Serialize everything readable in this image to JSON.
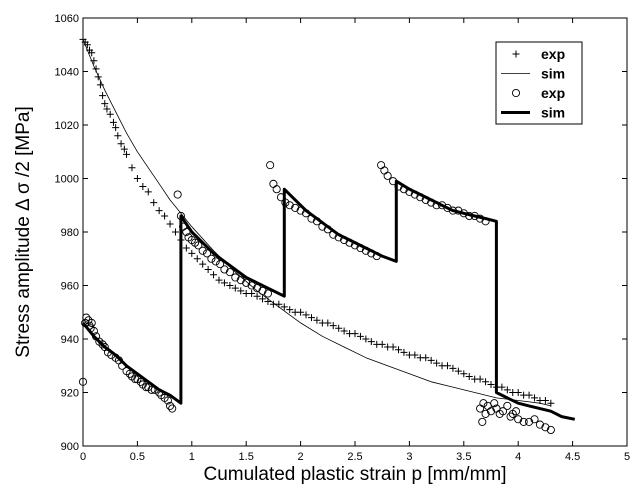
{
  "chart_data": {
    "type": "scatter",
    "title": "",
    "xlabel": "Cumulated plastic strain p [mm/mm]",
    "ylabel": "Stress amplitude Δ σ /2 [MPa]",
    "xlim": [
      0,
      5
    ],
    "ylim": [
      900,
      1060
    ],
    "x_ticks": [
      "0",
      "0.5",
      "1",
      "1.5",
      "2",
      "2.5",
      "3",
      "3.5",
      "4",
      "4.5",
      "5"
    ],
    "y_ticks": [
      "900",
      "920",
      "940",
      "960",
      "980",
      "1000",
      "1020",
      "1040",
      "1060"
    ],
    "grid": false,
    "legend_position": "top-right",
    "series": [
      {
        "name": "exp",
        "style": "plus-markers",
        "color": "#000000",
        "points": [
          [
            0.0,
            1052
          ],
          [
            0.02,
            1051
          ],
          [
            0.04,
            1050
          ],
          [
            0.06,
            1048
          ],
          [
            0.08,
            1047
          ],
          [
            0.1,
            1044
          ],
          [
            0.12,
            1041
          ],
          [
            0.14,
            1038
          ],
          [
            0.16,
            1035
          ],
          [
            0.18,
            1031
          ],
          [
            0.2,
            1028
          ],
          [
            0.22,
            1026
          ],
          [
            0.25,
            1024
          ],
          [
            0.28,
            1021
          ],
          [
            0.3,
            1019
          ],
          [
            0.32,
            1016
          ],
          [
            0.35,
            1013
          ],
          [
            0.38,
            1011
          ],
          [
            0.4,
            1009
          ],
          [
            0.45,
            1004
          ],
          [
            0.5,
            1000
          ],
          [
            0.55,
            997
          ],
          [
            0.6,
            995
          ],
          [
            0.65,
            991
          ],
          [
            0.7,
            988
          ],
          [
            0.75,
            986
          ],
          [
            0.8,
            983
          ],
          [
            0.85,
            980
          ],
          [
            0.9,
            977
          ],
          [
            0.95,
            974
          ],
          [
            1.0,
            972
          ],
          [
            1.05,
            970
          ],
          [
            1.1,
            968
          ],
          [
            1.15,
            966
          ],
          [
            1.2,
            964
          ],
          [
            1.25,
            962
          ],
          [
            1.3,
            961
          ],
          [
            1.35,
            960
          ],
          [
            1.4,
            959
          ],
          [
            1.45,
            958
          ],
          [
            1.5,
            957
          ],
          [
            1.55,
            957
          ],
          [
            1.6,
            956
          ],
          [
            1.65,
            955
          ],
          [
            1.7,
            954
          ],
          [
            1.75,
            953
          ],
          [
            1.8,
            953
          ],
          [
            1.85,
            952
          ],
          [
            1.9,
            951
          ],
          [
            1.95,
            950
          ],
          [
            2.0,
            950
          ],
          [
            2.05,
            949
          ],
          [
            2.1,
            948
          ],
          [
            2.15,
            947
          ],
          [
            2.2,
            946
          ],
          [
            2.25,
            946
          ],
          [
            2.3,
            945
          ],
          [
            2.35,
            944
          ],
          [
            2.4,
            943
          ],
          [
            2.45,
            942
          ],
          [
            2.5,
            942
          ],
          [
            2.55,
            941
          ],
          [
            2.6,
            940
          ],
          [
            2.65,
            939
          ],
          [
            2.7,
            938
          ],
          [
            2.75,
            938
          ],
          [
            2.8,
            937
          ],
          [
            2.85,
            937
          ],
          [
            2.9,
            936
          ],
          [
            2.95,
            935
          ],
          [
            3.0,
            934
          ],
          [
            3.05,
            934
          ],
          [
            3.1,
            933
          ],
          [
            3.15,
            933
          ],
          [
            3.2,
            932
          ],
          [
            3.25,
            931
          ],
          [
            3.3,
            930
          ],
          [
            3.35,
            930
          ],
          [
            3.4,
            929
          ],
          [
            3.45,
            928
          ],
          [
            3.5,
            927
          ],
          [
            3.55,
            926
          ],
          [
            3.6,
            925
          ],
          [
            3.65,
            925
          ],
          [
            3.7,
            924
          ],
          [
            3.75,
            923
          ],
          [
            3.8,
            922
          ],
          [
            3.85,
            922
          ],
          [
            3.9,
            921
          ],
          [
            3.95,
            920
          ],
          [
            4.0,
            920
          ],
          [
            4.05,
            919
          ],
          [
            4.1,
            919
          ],
          [
            4.15,
            918
          ],
          [
            4.2,
            917
          ],
          [
            4.25,
            917
          ],
          [
            4.3,
            916
          ]
        ]
      },
      {
        "name": "sim",
        "style": "thin-line",
        "color": "#000000",
        "points": [
          [
            0.0,
            1052
          ],
          [
            0.1,
            1042
          ],
          [
            0.2,
            1033
          ],
          [
            0.3,
            1025
          ],
          [
            0.4,
            1017
          ],
          [
            0.5,
            1010
          ],
          [
            0.6,
            1004
          ],
          [
            0.7,
            998
          ],
          [
            0.8,
            992
          ],
          [
            0.9,
            987
          ],
          [
            1.0,
            982
          ],
          [
            1.2,
            973
          ],
          [
            1.4,
            965
          ],
          [
            1.6,
            958
          ],
          [
            1.8,
            952
          ],
          [
            2.0,
            946
          ],
          [
            2.2,
            941
          ],
          [
            2.4,
            937
          ],
          [
            2.6,
            933
          ],
          [
            2.8,
            930
          ],
          [
            3.0,
            927
          ],
          [
            3.2,
            924
          ],
          [
            3.4,
            922
          ],
          [
            3.6,
            920
          ],
          [
            3.8,
            918
          ],
          [
            4.0,
            917
          ],
          [
            4.2,
            916
          ],
          [
            4.3,
            915
          ]
        ]
      },
      {
        "name": "exp",
        "style": "circle-markers",
        "color": "#000000",
        "points": [
          [
            0.0,
            924
          ],
          [
            0.02,
            946
          ],
          [
            0.03,
            948
          ],
          [
            0.05,
            947
          ],
          [
            0.06,
            945
          ],
          [
            0.07,
            944
          ],
          [
            0.08,
            946
          ],
          [
            0.1,
            943
          ],
          [
            0.12,
            941
          ],
          [
            0.15,
            939
          ],
          [
            0.18,
            938
          ],
          [
            0.2,
            937
          ],
          [
            0.23,
            935
          ],
          [
            0.26,
            934
          ],
          [
            0.3,
            933
          ],
          [
            0.33,
            932
          ],
          [
            0.36,
            930
          ],
          [
            0.4,
            928
          ],
          [
            0.43,
            927
          ],
          [
            0.45,
            926
          ],
          [
            0.48,
            925
          ],
          [
            0.5,
            925
          ],
          [
            0.53,
            924
          ],
          [
            0.55,
            923
          ],
          [
            0.58,
            922
          ],
          [
            0.6,
            922
          ],
          [
            0.63,
            921
          ],
          [
            0.66,
            921
          ],
          [
            0.7,
            920
          ],
          [
            0.72,
            919
          ],
          [
            0.75,
            918
          ],
          [
            0.78,
            917
          ],
          [
            0.8,
            915
          ],
          [
            0.82,
            914
          ],
          [
            0.87,
            994
          ],
          [
            0.9,
            986
          ],
          [
            0.92,
            982
          ],
          [
            0.95,
            980
          ],
          [
            0.97,
            978
          ],
          [
            1.0,
            977
          ],
          [
            1.03,
            976
          ],
          [
            1.06,
            975
          ],
          [
            1.1,
            973
          ],
          [
            1.14,
            972
          ],
          [
            1.18,
            970
          ],
          [
            1.22,
            969
          ],
          [
            1.26,
            968
          ],
          [
            1.3,
            966
          ],
          [
            1.35,
            965
          ],
          [
            1.4,
            963
          ],
          [
            1.45,
            962
          ],
          [
            1.5,
            961
          ],
          [
            1.55,
            960
          ],
          [
            1.6,
            959
          ],
          [
            1.65,
            958
          ],
          [
            1.7,
            957
          ],
          [
            1.72,
            1005
          ],
          [
            1.75,
            998
          ],
          [
            1.78,
            996
          ],
          [
            1.82,
            993
          ],
          [
            1.86,
            991
          ],
          [
            1.9,
            990
          ],
          [
            1.95,
            989
          ],
          [
            2.0,
            988
          ],
          [
            2.05,
            987
          ],
          [
            2.1,
            985
          ],
          [
            2.15,
            984
          ],
          [
            2.2,
            982
          ],
          [
            2.25,
            981
          ],
          [
            2.3,
            979
          ],
          [
            2.35,
            978
          ],
          [
            2.4,
            977
          ],
          [
            2.45,
            976
          ],
          [
            2.5,
            975
          ],
          [
            2.55,
            974
          ],
          [
            2.6,
            973
          ],
          [
            2.65,
            972
          ],
          [
            2.7,
            971
          ],
          [
            2.74,
            1005
          ],
          [
            2.77,
            1003
          ],
          [
            2.8,
            1001
          ],
          [
            2.85,
            999
          ],
          [
            2.9,
            997
          ],
          [
            2.95,
            996
          ],
          [
            3.0,
            995
          ],
          [
            3.05,
            994
          ],
          [
            3.1,
            993
          ],
          [
            3.15,
            992
          ],
          [
            3.2,
            991
          ],
          [
            3.25,
            990
          ],
          [
            3.3,
            990
          ],
          [
            3.35,
            989
          ],
          [
            3.4,
            988
          ],
          [
            3.45,
            988
          ],
          [
            3.5,
            987
          ],
          [
            3.55,
            986
          ],
          [
            3.6,
            986
          ],
          [
            3.65,
            985
          ],
          [
            3.7,
            984
          ],
          [
            3.65,
            914
          ],
          [
            3.68,
            916
          ],
          [
            3.7,
            912
          ],
          [
            3.72,
            915
          ],
          [
            3.75,
            913
          ],
          [
            3.78,
            916
          ],
          [
            3.8,
            914
          ],
          [
            3.83,
            912
          ],
          [
            3.86,
            913
          ],
          [
            3.9,
            915
          ],
          [
            3.93,
            911
          ],
          [
            3.95,
            912
          ],
          [
            3.98,
            913
          ],
          [
            4.0,
            910
          ],
          [
            4.05,
            909
          ],
          [
            4.1,
            909
          ],
          [
            4.15,
            910
          ],
          [
            4.2,
            908
          ],
          [
            4.25,
            907
          ],
          [
            4.3,
            906
          ],
          [
            3.67,
            909
          ]
        ]
      },
      {
        "name": "sim",
        "style": "thick-line",
        "color": "#000000",
        "points": [
          [
            0.0,
            946
          ],
          [
            0.1,
            941
          ],
          [
            0.2,
            937
          ],
          [
            0.3,
            934
          ],
          [
            0.4,
            930
          ],
          [
            0.5,
            927
          ],
          [
            0.6,
            924
          ],
          [
            0.7,
            921
          ],
          [
            0.8,
            919
          ],
          [
            0.9,
            916
          ],
          [
            0.9,
            986
          ],
          [
            1.0,
            980
          ],
          [
            1.1,
            976
          ],
          [
            1.2,
            972
          ],
          [
            1.3,
            969
          ],
          [
            1.4,
            966
          ],
          [
            1.5,
            963
          ],
          [
            1.6,
            961
          ],
          [
            1.7,
            959
          ],
          [
            1.85,
            956
          ],
          [
            1.85,
            996
          ],
          [
            1.95,
            992
          ],
          [
            2.05,
            988
          ],
          [
            2.15,
            985
          ],
          [
            2.25,
            982
          ],
          [
            2.35,
            979
          ],
          [
            2.45,
            977
          ],
          [
            2.55,
            975
          ],
          [
            2.65,
            973
          ],
          [
            2.75,
            971
          ],
          [
            2.88,
            969
          ],
          [
            2.88,
            999
          ],
          [
            3.0,
            996
          ],
          [
            3.1,
            994
          ],
          [
            3.2,
            992
          ],
          [
            3.3,
            990
          ],
          [
            3.4,
            988
          ],
          [
            3.5,
            987
          ],
          [
            3.6,
            986
          ],
          [
            3.7,
            985
          ],
          [
            3.8,
            984
          ],
          [
            3.8,
            920
          ],
          [
            3.9,
            918
          ],
          [
            4.0,
            916
          ],
          [
            4.1,
            915
          ],
          [
            4.2,
            914
          ],
          [
            4.3,
            913
          ],
          [
            4.4,
            911
          ],
          [
            4.52,
            910
          ]
        ]
      }
    ]
  }
}
